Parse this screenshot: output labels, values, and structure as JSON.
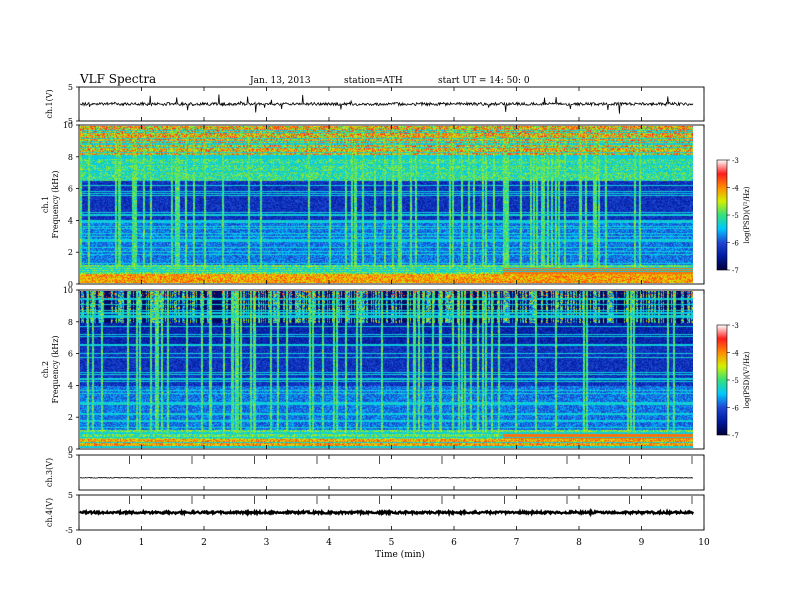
{
  "header": {
    "title": "VLF  Spectra",
    "date": "Jan. 13, 2013",
    "station": "station=ATH",
    "start": "start  UT =   14: 50: 0"
  },
  "chart_data": [
    {
      "type": "line",
      "ylabel": "ch.1(V)",
      "ylim": [
        -5,
        5
      ],
      "yticks": [
        {
          "label": "5",
          "value": 5
        },
        {
          "label": "-5",
          "value": -5
        }
      ],
      "baseline_value": 0,
      "color": "#000000"
    },
    {
      "type": "heatmap",
      "ylabel": "ch.1\nFrequency  (kHz)",
      "ylim": [
        0,
        10
      ],
      "yticks": [
        {
          "label": "0",
          "value": 0
        },
        {
          "label": "2",
          "value": 2
        },
        {
          "label": "4",
          "value": 4
        },
        {
          "label": "6",
          "value": 6
        },
        {
          "label": "8",
          "value": 8
        },
        {
          "label": "10",
          "value": 10
        }
      ],
      "colorbar": {
        "label": "log(PSD)(V²/Hz)",
        "range": [
          -7,
          -3
        ],
        "ticks": [
          "-3",
          "-4",
          "-5",
          "-6",
          "-7"
        ]
      },
      "colormap": [
        "#00003c",
        "#001aa0",
        "#1e46d2",
        "#00c8ff",
        "#36e07a",
        "#d2f000",
        "#ff8c00",
        "#ff1e1e",
        "#ffffff"
      ]
    },
    {
      "type": "heatmap",
      "ylabel": "ch.2\nFrequency  (kHz)",
      "ylim": [
        0,
        10
      ],
      "yticks": [
        {
          "label": "0",
          "value": 0
        },
        {
          "label": "2",
          "value": 2
        },
        {
          "label": "4",
          "value": 4
        },
        {
          "label": "6",
          "value": 6
        },
        {
          "label": "8",
          "value": 8
        },
        {
          "label": "10",
          "value": 10
        }
      ],
      "colorbar": {
        "label": "log(PSD)(V²/Hz)",
        "range": [
          -7,
          -3
        ],
        "ticks": [
          "-3",
          "-4",
          "-5",
          "-6",
          "-7"
        ]
      }
    },
    {
      "type": "line",
      "ylabel": "ch.3(V)",
      "ylim": [
        -5,
        5
      ],
      "yticks": [
        {
          "label": "5",
          "value": 5
        }
      ],
      "baseline_value": -1.5
    },
    {
      "type": "line",
      "ylabel": "ch.4(V)",
      "ylim": [
        -5,
        5
      ],
      "yticks": [
        {
          "label": "5",
          "value": 5
        },
        {
          "label": "-5",
          "value": -5
        }
      ],
      "baseline_value": 0
    }
  ],
  "xaxis": {
    "label": "Time  (min)",
    "ticks": [
      "0",
      "1",
      "2",
      "3",
      "4",
      "5",
      "6",
      "7",
      "8",
      "9",
      "10"
    ],
    "xlim": [
      0,
      10
    ]
  }
}
